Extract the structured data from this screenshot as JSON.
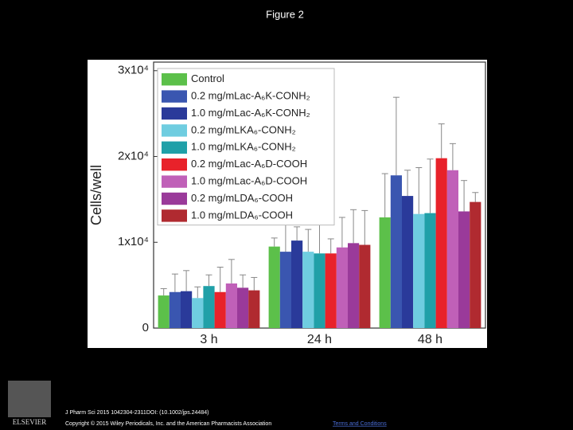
{
  "chart_data": {
    "type": "bar",
    "title": "Figure 2",
    "y_label": "Cells/well",
    "categories": [
      "3 h",
      "24 h",
      "48 h"
    ],
    "ylim": [
      0,
      31000
    ],
    "yticks": [
      0,
      {
        "value": 10000,
        "label": "1x10⁴"
      },
      {
        "value": 20000,
        "label": "2x10⁴"
      },
      {
        "value": 30000,
        "label": "3x10⁴"
      }
    ],
    "legend": "upper left",
    "error_color": "#888888",
    "series": [
      {
        "name": "Control",
        "color": "#5cc04a",
        "values": [
          3800,
          9500,
          12900
        ],
        "errors": [
          800,
          1000,
          5100
        ]
      },
      {
        "name": "0.2 mg/mLac-A₆K-CONH₂",
        "color": "#3a56b0",
        "values": [
          4200,
          8900,
          17800
        ],
        "errors": [
          2100,
          4200,
          9100
        ]
      },
      {
        "name": "1.0 mg/mLac-A₆K-CONH₂",
        "color": "#2a3a9a",
        "values": [
          4300,
          10200,
          15400
        ],
        "errors": [
          2400,
          1600,
          3000
        ]
      },
      {
        "name": "0.2 mg/mLKA₆-CONH₂",
        "color": "#6fcde0",
        "values": [
          3500,
          8900,
          13300
        ],
        "errors": [
          1300,
          2600,
          5400
        ]
      },
      {
        "name": "1.0 mg/mLKA₆-CONH₂",
        "color": "#20a0a8",
        "values": [
          4900,
          8700,
          13400
        ],
        "errors": [
          1300,
          3500,
          6300
        ]
      },
      {
        "name": "0.2 mg/mLac-A₆D-COOH",
        "color": "#e8222a",
        "values": [
          4200,
          8700,
          19800
        ],
        "errors": [
          2900,
          1700,
          4000
        ]
      },
      {
        "name": "1.0 mg/mLac-A₆D-COOH",
        "color": "#c060b8",
        "values": [
          5200,
          9400,
          18400
        ],
        "errors": [
          2800,
          3500,
          3100
        ]
      },
      {
        "name": "0.2 mg/mLDA₆-COOH",
        "color": "#9a3a9a",
        "values": [
          4700,
          9900,
          13600
        ],
        "errors": [
          1500,
          3900,
          3600
        ]
      },
      {
        "name": "1.0 mg/mLDA₆-COOH",
        "color": "#b02a30",
        "values": [
          4400,
          9700,
          14700
        ],
        "errors": [
          1500,
          4000,
          1100
        ]
      }
    ]
  },
  "footer": {
    "publisher": "ELSEVIER",
    "citation": "J Pharm Sci 2015 1042304-2311DOI: (10.1002/jps.24484)",
    "copyright": "Copyright © 2015 Wiley Periodicals, Inc. and the American Pharmacists Association",
    "link": "Terms and Conditions"
  }
}
